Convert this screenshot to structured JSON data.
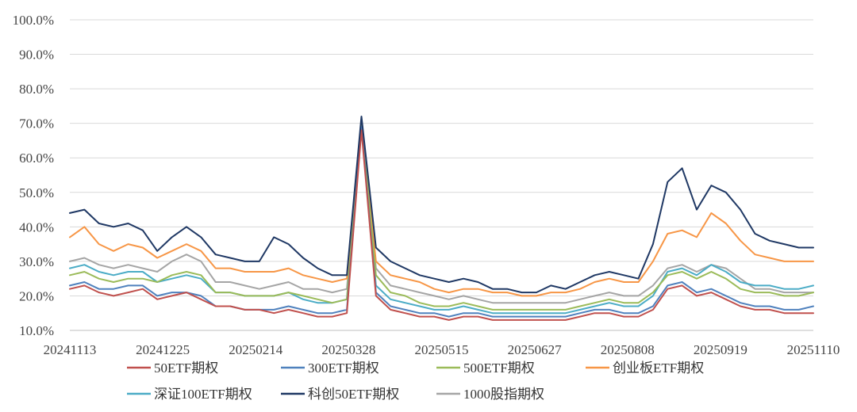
{
  "chart_data": {
    "type": "line",
    "title": "",
    "xlabel": "",
    "ylabel": "",
    "ylim": [
      0.1,
      1.0
    ],
    "y_ticks": [
      "10.0%",
      "20.0%",
      "30.0%",
      "40.0%",
      "50.0%",
      "60.0%",
      "70.0%",
      "80.0%",
      "90.0%",
      "100.0%"
    ],
    "x_tick_labels": [
      "20241113",
      "20241225",
      "20250214",
      "20250328",
      "20250515",
      "20250627",
      "20250808",
      "20250919",
      "20251110"
    ],
    "grid": true,
    "legend": "bottom",
    "x": [
      "20241113",
      "20241120",
      "20241127",
      "20241204",
      "20241211",
      "20241218",
      "20241225",
      "20250102",
      "20250109",
      "20250116",
      "20250123",
      "20250130",
      "20250207",
      "20250214",
      "20250221",
      "20250228",
      "20250307",
      "20250314",
      "20250321",
      "20250328",
      "20250404",
      "20250411",
      "20250418",
      "20250425",
      "20250502",
      "20250509",
      "20250515",
      "20250522",
      "20250529",
      "20250605",
      "20250612",
      "20250619",
      "20250627",
      "20250704",
      "20250711",
      "20250718",
      "20250725",
      "20250801",
      "20250808",
      "20250815",
      "20250822",
      "20250829",
      "20250905",
      "20250912",
      "20250919",
      "20250926",
      "20251003",
      "20251010",
      "20251017",
      "20251024",
      "20251031",
      "20251110"
    ],
    "series": [
      {
        "name": "50ETF期权",
        "color": "#c0504d",
        "values": [
          0.22,
          0.23,
          0.21,
          0.2,
          0.21,
          0.22,
          0.19,
          0.2,
          0.21,
          0.19,
          0.17,
          0.17,
          0.16,
          0.16,
          0.15,
          0.16,
          0.15,
          0.14,
          0.14,
          0.15,
          0.68,
          0.2,
          0.16,
          0.15,
          0.14,
          0.14,
          0.13,
          0.14,
          0.14,
          0.13,
          0.13,
          0.13,
          0.13,
          0.13,
          0.13,
          0.14,
          0.15,
          0.15,
          0.14,
          0.14,
          0.16,
          0.22,
          0.23,
          0.2,
          0.21,
          0.19,
          0.17,
          0.16,
          0.16,
          0.15,
          0.15,
          0.15
        ]
      },
      {
        "name": "300ETF期权",
        "color": "#4f81bd",
        "values": [
          0.23,
          0.24,
          0.22,
          0.22,
          0.23,
          0.23,
          0.2,
          0.21,
          0.21,
          0.2,
          0.17,
          0.17,
          0.16,
          0.16,
          0.16,
          0.17,
          0.16,
          0.15,
          0.15,
          0.16,
          0.69,
          0.21,
          0.17,
          0.16,
          0.15,
          0.15,
          0.14,
          0.15,
          0.15,
          0.14,
          0.14,
          0.14,
          0.14,
          0.14,
          0.14,
          0.15,
          0.16,
          0.16,
          0.15,
          0.15,
          0.17,
          0.23,
          0.24,
          0.21,
          0.22,
          0.2,
          0.18,
          0.17,
          0.17,
          0.16,
          0.16,
          0.17
        ]
      },
      {
        "name": "500ETF期权",
        "color": "#9bbb59",
        "values": [
          0.26,
          0.27,
          0.25,
          0.24,
          0.25,
          0.25,
          0.24,
          0.26,
          0.27,
          0.26,
          0.21,
          0.21,
          0.2,
          0.2,
          0.2,
          0.21,
          0.2,
          0.19,
          0.18,
          0.19,
          0.7,
          0.26,
          0.21,
          0.2,
          0.18,
          0.17,
          0.17,
          0.18,
          0.17,
          0.16,
          0.16,
          0.16,
          0.16,
          0.16,
          0.16,
          0.17,
          0.18,
          0.19,
          0.18,
          0.18,
          0.21,
          0.26,
          0.27,
          0.25,
          0.27,
          0.25,
          0.22,
          0.21,
          0.21,
          0.2,
          0.2,
          0.21
        ]
      },
      {
        "name": "创业板ETF期权",
        "color": "#f79646",
        "values": [
          0.37,
          0.4,
          0.35,
          0.33,
          0.35,
          0.34,
          0.31,
          0.33,
          0.35,
          0.33,
          0.28,
          0.28,
          0.27,
          0.27,
          0.27,
          0.28,
          0.26,
          0.25,
          0.24,
          0.25,
          0.7,
          0.3,
          0.26,
          0.25,
          0.24,
          0.22,
          0.21,
          0.22,
          0.22,
          0.21,
          0.21,
          0.2,
          0.2,
          0.21,
          0.21,
          0.22,
          0.24,
          0.25,
          0.24,
          0.24,
          0.3,
          0.38,
          0.39,
          0.37,
          0.44,
          0.41,
          0.36,
          0.32,
          0.31,
          0.3,
          0.3,
          0.3
        ]
      },
      {
        "name": "深证100ETF期权",
        "color": "#4bacc6",
        "values": [
          0.28,
          0.29,
          0.27,
          0.26,
          0.27,
          0.27,
          0.24,
          0.25,
          0.26,
          0.25,
          0.21,
          0.21,
          0.2,
          0.2,
          0.2,
          0.21,
          0.19,
          0.18,
          0.18,
          0.19,
          0.7,
          0.23,
          0.19,
          0.18,
          0.17,
          0.16,
          0.16,
          0.17,
          0.16,
          0.15,
          0.15,
          0.15,
          0.15,
          0.15,
          0.15,
          0.16,
          0.17,
          0.18,
          0.17,
          0.17,
          0.2,
          0.27,
          0.28,
          0.26,
          0.29,
          0.27,
          0.24,
          0.23,
          0.23,
          0.22,
          0.22,
          0.23
        ]
      },
      {
        "name": "科创50ETF期权",
        "color": "#1f3864",
        "values": [
          0.44,
          0.45,
          0.41,
          0.4,
          0.41,
          0.39,
          0.33,
          0.37,
          0.4,
          0.37,
          0.32,
          0.31,
          0.3,
          0.3,
          0.37,
          0.35,
          0.31,
          0.28,
          0.26,
          0.26,
          0.72,
          0.34,
          0.3,
          0.28,
          0.26,
          0.25,
          0.24,
          0.25,
          0.24,
          0.22,
          0.22,
          0.21,
          0.21,
          0.23,
          0.22,
          0.24,
          0.26,
          0.27,
          0.26,
          0.25,
          0.35,
          0.53,
          0.57,
          0.45,
          0.52,
          0.5,
          0.45,
          0.38,
          0.36,
          0.35,
          0.34,
          0.34
        ]
      },
      {
        "name": "1000股指期权",
        "color": "#a5a5a5",
        "values": [
          0.3,
          0.31,
          0.29,
          0.28,
          0.29,
          0.28,
          0.27,
          0.3,
          0.32,
          0.3,
          0.24,
          0.24,
          0.23,
          0.22,
          0.23,
          0.24,
          0.22,
          0.22,
          0.21,
          0.22,
          0.71,
          0.28,
          0.23,
          0.22,
          0.21,
          0.2,
          0.19,
          0.2,
          0.19,
          0.18,
          0.18,
          0.18,
          0.18,
          0.18,
          0.18,
          0.19,
          0.2,
          0.21,
          0.2,
          0.2,
          0.23,
          0.28,
          0.29,
          0.27,
          0.29,
          0.28,
          0.25,
          0.22,
          0.22,
          0.21,
          0.21,
          0.21
        ]
      }
    ]
  }
}
